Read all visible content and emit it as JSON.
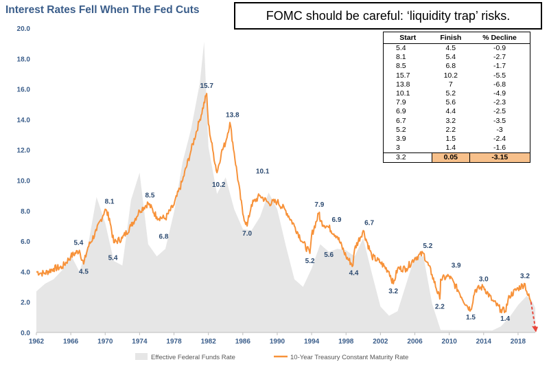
{
  "title": "Interest Rates Fell When The Fed Cuts",
  "callout": "FOMC should be careful: ‘liquidity trap’ risks.",
  "table": {
    "headers": [
      "Start",
      "Finish",
      "% Decline"
    ],
    "rows": [
      [
        "5.4",
        "4.5",
        "-0.9"
      ],
      [
        "8.1",
        "5.4",
        "-2.7"
      ],
      [
        "8.5",
        "6.8",
        "-1.7"
      ],
      [
        "15.7",
        "10.2",
        "-5.5"
      ],
      [
        "13.8",
        "7",
        "-6.8"
      ],
      [
        "10.1",
        "5.2",
        "-4.9"
      ],
      [
        "7.9",
        "5.6",
        "-2.3"
      ],
      [
        "6.9",
        "4.4",
        "-2.5"
      ],
      [
        "6.7",
        "3.2",
        "-3.5"
      ],
      [
        "5.2",
        "2.2",
        "-3"
      ],
      [
        "3.9",
        "1.5",
        "-2.4"
      ],
      [
        "3",
        "1.4",
        "-1.6"
      ],
      [
        "3.2",
        "0.05",
        "-3.15"
      ]
    ],
    "highlight_row": 12,
    "highlight_color": "#f7c08b"
  },
  "chart_data": {
    "type": "area",
    "title": "Interest Rates Fell When The Fed Cuts",
    "xlabel": "",
    "ylabel": "",
    "xlim": [
      1962,
      2020
    ],
    "ylim": [
      0,
      20
    ],
    "x_ticks": [
      "1962",
      "1966",
      "1970",
      "1974",
      "1978",
      "1982",
      "1986",
      "1990",
      "1994",
      "1998",
      "2002",
      "2006",
      "2010",
      "2014",
      "2018"
    ],
    "y_ticks": [
      "0.0",
      "2.0",
      "4.0",
      "6.0",
      "8.0",
      "10.0",
      "12.0",
      "14.0",
      "16.0",
      "18.0",
      "20.0"
    ],
    "grid": false,
    "legend_position": "bottom",
    "series": [
      {
        "name": "Effective Federal Funds Rate",
        "type": "area",
        "color": "#e6e6e6",
        "points": [
          [
            1962,
            2.7
          ],
          [
            1963,
            3.2
          ],
          [
            1964,
            3.5
          ],
          [
            1965,
            4.1
          ],
          [
            1966,
            5.1
          ],
          [
            1967,
            4.0
          ],
          [
            1968,
            5.7
          ],
          [
            1969,
            8.9
          ],
          [
            1970,
            7.2
          ],
          [
            1971,
            4.7
          ],
          [
            1972,
            4.4
          ],
          [
            1973,
            8.7
          ],
          [
            1974,
            10.5
          ],
          [
            1975,
            5.8
          ],
          [
            1976,
            5.0
          ],
          [
            1977,
            5.5
          ],
          [
            1978,
            7.9
          ],
          [
            1979,
            11.2
          ],
          [
            1980,
            13.4
          ],
          [
            1981,
            16.4
          ],
          [
            1981.5,
            19.1
          ],
          [
            1982,
            12.2
          ],
          [
            1983,
            9.1
          ],
          [
            1984,
            10.2
          ],
          [
            1985,
            8.1
          ],
          [
            1986,
            6.8
          ],
          [
            1987,
            6.7
          ],
          [
            1988,
            7.6
          ],
          [
            1989,
            9.2
          ],
          [
            1990,
            8.1
          ],
          [
            1991,
            5.7
          ],
          [
            1992,
            3.5
          ],
          [
            1993,
            3.0
          ],
          [
            1994,
            4.2
          ],
          [
            1995,
            5.8
          ],
          [
            1996,
            5.3
          ],
          [
            1997,
            5.5
          ],
          [
            1998,
            5.4
          ],
          [
            1999,
            5.0
          ],
          [
            2000,
            6.2
          ],
          [
            2001,
            3.9
          ],
          [
            2002,
            1.7
          ],
          [
            2003,
            1.1
          ],
          [
            2004,
            1.4
          ],
          [
            2005,
            3.2
          ],
          [
            2006,
            5.0
          ],
          [
            2007,
            5.0
          ],
          [
            2008,
            1.9
          ],
          [
            2009,
            0.16
          ],
          [
            2012,
            0.14
          ],
          [
            2015,
            0.13
          ],
          [
            2016,
            0.4
          ],
          [
            2017,
            1.0
          ],
          [
            2018,
            1.8
          ],
          [
            2019,
            2.4
          ],
          [
            2019.7,
            2.0
          ],
          [
            2020,
            1.6
          ]
        ]
      },
      {
        "name": "10-Year Treasury Constant Maturity Rate",
        "type": "line",
        "color": "#f7923a",
        "points": [
          [
            1962,
            4.0
          ],
          [
            1962.5,
            3.9
          ],
          [
            1963,
            3.9
          ],
          [
            1964,
            4.2
          ],
          [
            1965,
            4.3
          ],
          [
            1966,
            5.0
          ],
          [
            1967,
            5.4
          ],
          [
            1967.5,
            4.5
          ],
          [
            1968,
            5.6
          ],
          [
            1969,
            6.7
          ],
          [
            1970,
            8.1
          ],
          [
            1970.5,
            7.5
          ],
          [
            1971,
            5.9
          ],
          [
            1972,
            6.2
          ],
          [
            1973,
            7.0
          ],
          [
            1974,
            8.0
          ],
          [
            1975,
            8.5
          ],
          [
            1976,
            7.6
          ],
          [
            1977,
            7.5
          ],
          [
            1978,
            8.4
          ],
          [
            1979,
            10.0
          ],
          [
            1980,
            12.0
          ],
          [
            1981,
            14.0
          ],
          [
            1981.8,
            15.7
          ],
          [
            1982,
            13.7
          ],
          [
            1982.5,
            12.0
          ],
          [
            1983,
            10.5
          ],
          [
            1983.5,
            11.8
          ],
          [
            1984,
            12.5
          ],
          [
            1984.5,
            13.8
          ],
          [
            1985,
            11.8
          ],
          [
            1986,
            7.8
          ],
          [
            1986.5,
            7.0
          ],
          [
            1987,
            8.4
          ],
          [
            1988,
            9.0
          ],
          [
            1989,
            8.5
          ],
          [
            1990,
            8.6
          ],
          [
            1991,
            8.0
          ],
          [
            1992,
            7.0
          ],
          [
            1993,
            5.9
          ],
          [
            1993.8,
            5.2
          ],
          [
            1994,
            6.4
          ],
          [
            1994.9,
            7.9
          ],
          [
            1995,
            7.3
          ],
          [
            1996,
            6.9
          ],
          [
            1997,
            6.3
          ],
          [
            1998,
            5.0
          ],
          [
            1998.8,
            4.4
          ],
          [
            1999,
            5.5
          ],
          [
            2000,
            6.7
          ],
          [
            2001,
            5.0
          ],
          [
            2002,
            4.6
          ],
          [
            2003,
            4.0
          ],
          [
            2003.5,
            3.2
          ],
          [
            2004,
            4.2
          ],
          [
            2005,
            4.2
          ],
          [
            2006,
            4.9
          ],
          [
            2007,
            5.2
          ],
          [
            2008,
            3.8
          ],
          [
            2008.9,
            2.2
          ],
          [
            2009,
            3.5
          ],
          [
            2010,
            3.7
          ],
          [
            2011,
            2.8
          ],
          [
            2012,
            1.8
          ],
          [
            2012.5,
            1.5
          ],
          [
            2013,
            2.8
          ],
          [
            2014,
            3.0
          ],
          [
            2015,
            2.1
          ],
          [
            2016,
            1.5
          ],
          [
            2016.5,
            1.4
          ],
          [
            2017,
            2.4
          ],
          [
            2018,
            2.9
          ],
          [
            2018.8,
            3.2
          ],
          [
            2019,
            2.7
          ],
          [
            2019.5,
            2.0
          ]
        ]
      }
    ],
    "annotations": [
      {
        "label": "5.4",
        "x": 1966.9,
        "y": 5.4
      },
      {
        "label": "4.5",
        "x": 1967.5,
        "y": 4.5
      },
      {
        "label": "8.1",
        "x": 1970.5,
        "y": 8.1
      },
      {
        "label": "5.4",
        "x": 1970.9,
        "y": 5.4
      },
      {
        "label": "8.5",
        "x": 1975.2,
        "y": 8.5
      },
      {
        "label": "6.8",
        "x": 1976.8,
        "y": 6.8
      },
      {
        "label": "15.7",
        "x": 1981.8,
        "y": 15.7
      },
      {
        "label": "10.2",
        "x": 1983.2,
        "y": 10.2
      },
      {
        "label": "13.8",
        "x": 1984.8,
        "y": 13.8
      },
      {
        "label": "7.0",
        "x": 1986.5,
        "y": 7.0
      },
      {
        "label": "10.1",
        "x": 1988.3,
        "y": 10.1
      },
      {
        "label": "5.2",
        "x": 1993.8,
        "y": 5.2
      },
      {
        "label": "7.9",
        "x": 1994.9,
        "y": 7.9
      },
      {
        "label": "5.6",
        "x": 1996.0,
        "y": 5.6
      },
      {
        "label": "6.9",
        "x": 1996.9,
        "y": 6.9
      },
      {
        "label": "4.4",
        "x": 1998.9,
        "y": 4.4
      },
      {
        "label": "6.7",
        "x": 2000.7,
        "y": 6.7
      },
      {
        "label": "3.2",
        "x": 2003.5,
        "y": 3.2
      },
      {
        "label": "5.2",
        "x": 2007.5,
        "y": 5.2
      },
      {
        "label": "2.2",
        "x": 2008.9,
        "y": 2.2
      },
      {
        "label": "3.9",
        "x": 2010.8,
        "y": 3.9
      },
      {
        "label": "1.5",
        "x": 2012.5,
        "y": 1.5
      },
      {
        "label": "3.0",
        "x": 2014.0,
        "y": 3.0
      },
      {
        "label": "1.4",
        "x": 2016.5,
        "y": 1.4
      },
      {
        "label": "3.2",
        "x": 2018.8,
        "y": 3.2
      }
    ],
    "projection": {
      "from": [
        2019.5,
        2.0
      ],
      "to": [
        2020.0,
        0.1
      ],
      "color": "#e8463a",
      "style": "dashed-arrow"
    }
  }
}
